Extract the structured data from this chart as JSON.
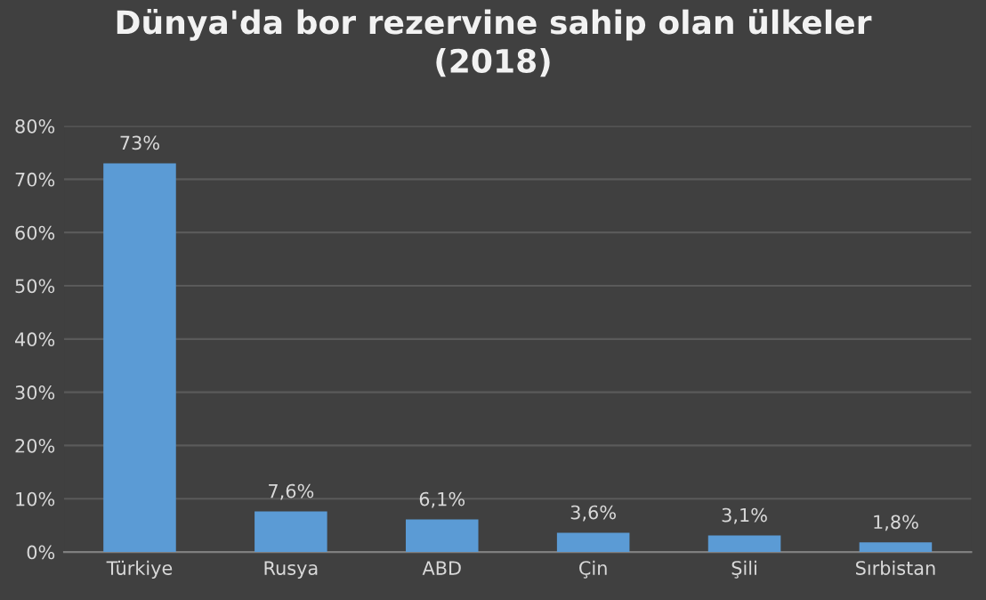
{
  "chart_data": {
    "type": "bar",
    "title": "Dünya'da bor rezervine sahip olan ülkeler\n(2018)",
    "categories": [
      "Türkiye",
      "Rusya",
      "ABD",
      "Çin",
      "Şili",
      "Sırbistan"
    ],
    "values": [
      73,
      7.6,
      6.1,
      3.6,
      3.1,
      1.8
    ],
    "value_labels": [
      "73%",
      "7,6%",
      "6,1%",
      "3,6%",
      "3,1%",
      "1,8%"
    ],
    "color": "#5b9bd5",
    "ylim": [
      0,
      80
    ],
    "yticks": [
      {
        "value": 0,
        "label": "0%"
      },
      {
        "value": 10,
        "label": "10%"
      },
      {
        "value": 20,
        "label": "20%"
      },
      {
        "value": 30,
        "label": "30%"
      },
      {
        "value": 40,
        "label": "40%"
      },
      {
        "value": 50,
        "label": "50%"
      },
      {
        "value": 60,
        "label": "60%"
      },
      {
        "value": 70,
        "label": "70%"
      },
      {
        "value": 80,
        "label": "80%"
      }
    ],
    "grid": "y",
    "legend": false
  }
}
